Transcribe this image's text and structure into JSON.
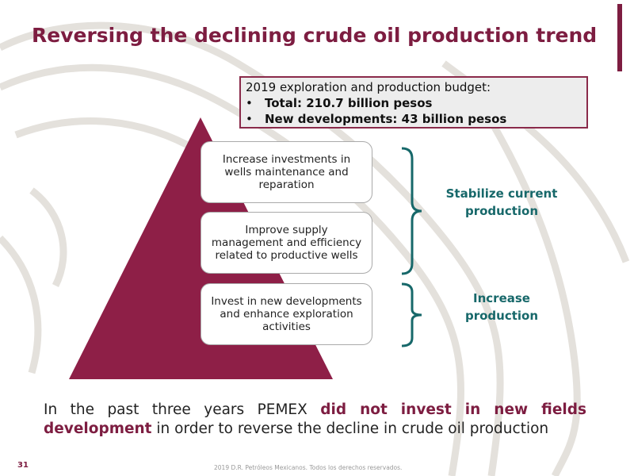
{
  "header": {
    "title": "Reversing the declining crude oil production trend"
  },
  "budget": {
    "heading": "2019 exploration and production budget:",
    "items": [
      "Total: 210.7 billion pesos",
      "New developments: 43 billion pesos"
    ]
  },
  "pyramid": {
    "steps": [
      "Increase investments in wells maintenance and reparation",
      "Improve supply management and efficiency related to productive wells",
      "Invest in new developments and enhance exploration activities"
    ]
  },
  "braces": [
    "Stabilize current production",
    "Increase production"
  ],
  "statement": {
    "parts": [
      "In the past three years PEMEX",
      "did not invest in new fields development",
      "in order to reverse the decline in crude oil production"
    ]
  },
  "footer": {
    "page": "31",
    "copyright": "2019 D.R. Petróleos Mexicanos. Todos los derechos reservados."
  }
}
